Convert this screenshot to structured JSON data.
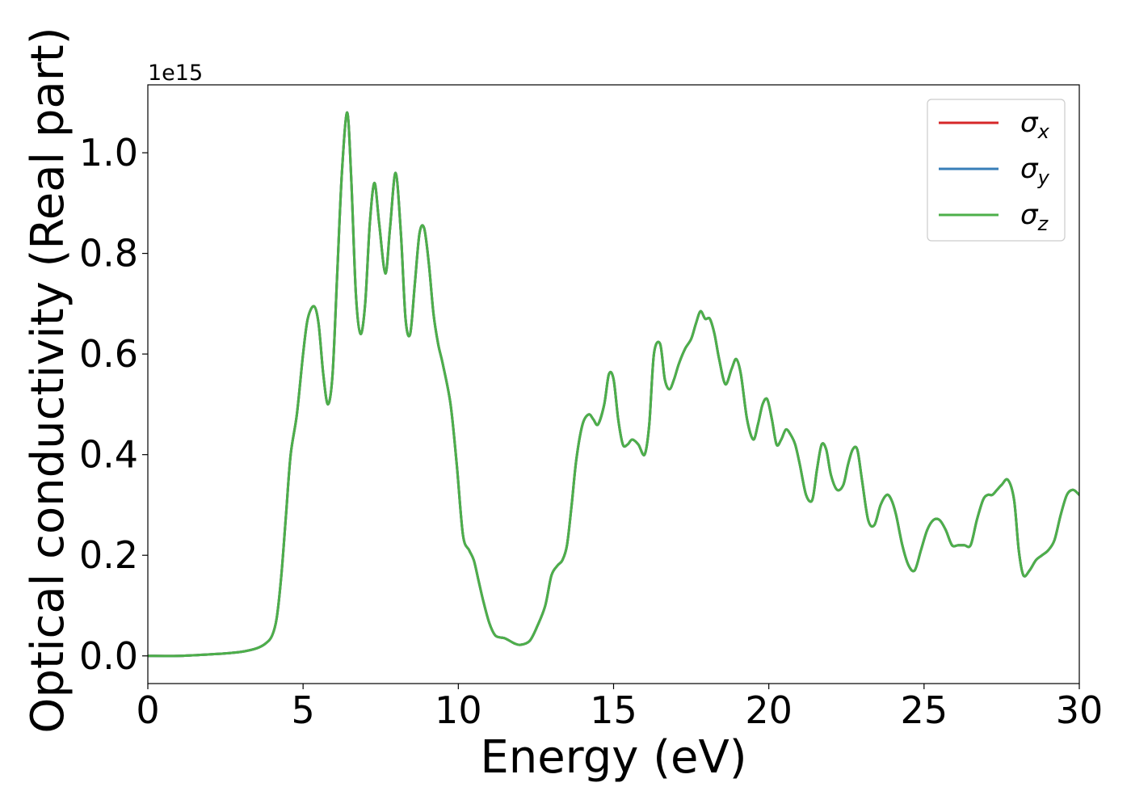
{
  "chart_data": {
    "type": "line",
    "xlabel": "Energy (eV)",
    "ylabel": "Optical conductivity (Real part)",
    "y_offset_label": "1e15",
    "xlim": [
      0,
      30
    ],
    "ylim": [
      -0.055,
      1.135
    ],
    "x_ticks": [
      0,
      5,
      10,
      15,
      20,
      25,
      30
    ],
    "x_tick_labels": [
      "0",
      "5",
      "10",
      "15",
      "20",
      "25",
      "30"
    ],
    "y_ticks": [
      0.0,
      0.2,
      0.4,
      0.6,
      0.8,
      1.0
    ],
    "y_tick_labels": [
      "0.0",
      "0.2",
      "0.4",
      "0.6",
      "0.8",
      "1.0"
    ],
    "grid": false,
    "legend_position": "top-right",
    "x": [
      0,
      1,
      2,
      2.5,
      3,
      3.5,
      3.8,
      4.0,
      4.15,
      4.3,
      4.45,
      4.6,
      4.8,
      5.0,
      5.15,
      5.35,
      5.5,
      5.65,
      5.8,
      5.95,
      6.1,
      6.25,
      6.42,
      6.55,
      6.7,
      6.85,
      7.0,
      7.15,
      7.3,
      7.45,
      7.65,
      7.8,
      7.98,
      8.15,
      8.3,
      8.45,
      8.6,
      8.75,
      8.9,
      9.05,
      9.2,
      9.35,
      9.5,
      9.75,
      9.95,
      10.15,
      10.35,
      10.5,
      10.65,
      10.8,
      11.0,
      11.2,
      11.5,
      11.8,
      12.0,
      12.3,
      12.55,
      12.8,
      13.0,
      13.2,
      13.35,
      13.5,
      13.65,
      13.8,
      14.0,
      14.2,
      14.35,
      14.5,
      14.7,
      14.85,
      15.0,
      15.15,
      15.3,
      15.45,
      15.6,
      15.8,
      16.0,
      16.15,
      16.3,
      16.5,
      16.65,
      16.8,
      16.95,
      17.1,
      17.3,
      17.5,
      17.65,
      17.8,
      17.95,
      18.1,
      18.25,
      18.4,
      18.6,
      18.8,
      18.95,
      19.1,
      19.3,
      19.5,
      19.65,
      19.8,
      19.95,
      20.1,
      20.25,
      20.4,
      20.55,
      20.7,
      20.85,
      21.0,
      21.2,
      21.4,
      21.55,
      21.7,
      21.85,
      22.0,
      22.2,
      22.4,
      22.55,
      22.7,
      22.85,
      23.0,
      23.2,
      23.4,
      23.6,
      23.8,
      23.95,
      24.1,
      24.3,
      24.5,
      24.7,
      24.9,
      25.1,
      25.3,
      25.5,
      25.7,
      25.9,
      26.1,
      26.3,
      26.5,
      26.7,
      26.9,
      27.05,
      27.2,
      27.35,
      27.5,
      27.7,
      27.9,
      28.05,
      28.2,
      28.4,
      28.6,
      28.8,
      29.0,
      29.2,
      29.4,
      29.6,
      29.8,
      30
    ],
    "series": [
      {
        "name": "σx",
        "label_base": "σ",
        "label_sub": "x",
        "color": "#d62728",
        "y": [
          0.0,
          0.0,
          0.003,
          0.005,
          0.008,
          0.015,
          0.025,
          0.04,
          0.075,
          0.16,
          0.28,
          0.4,
          0.48,
          0.6,
          0.67,
          0.695,
          0.66,
          0.56,
          0.5,
          0.56,
          0.76,
          0.96,
          1.08,
          0.95,
          0.72,
          0.64,
          0.7,
          0.86,
          0.94,
          0.86,
          0.76,
          0.85,
          0.96,
          0.84,
          0.67,
          0.64,
          0.74,
          0.84,
          0.85,
          0.78,
          0.68,
          0.62,
          0.58,
          0.5,
          0.38,
          0.24,
          0.21,
          0.19,
          0.15,
          0.11,
          0.065,
          0.04,
          0.035,
          0.025,
          0.022,
          0.03,
          0.06,
          0.1,
          0.16,
          0.18,
          0.19,
          0.22,
          0.3,
          0.39,
          0.46,
          0.48,
          0.47,
          0.46,
          0.5,
          0.56,
          0.55,
          0.47,
          0.42,
          0.42,
          0.43,
          0.42,
          0.4,
          0.46,
          0.6,
          0.62,
          0.55,
          0.53,
          0.55,
          0.58,
          0.61,
          0.63,
          0.66,
          0.685,
          0.67,
          0.67,
          0.64,
          0.59,
          0.54,
          0.57,
          0.59,
          0.56,
          0.47,
          0.43,
          0.46,
          0.5,
          0.51,
          0.47,
          0.42,
          0.43,
          0.45,
          0.44,
          0.42,
          0.38,
          0.32,
          0.31,
          0.37,
          0.42,
          0.41,
          0.36,
          0.33,
          0.34,
          0.38,
          0.41,
          0.41,
          0.35,
          0.27,
          0.26,
          0.3,
          0.32,
          0.31,
          0.28,
          0.22,
          0.18,
          0.17,
          0.21,
          0.25,
          0.27,
          0.27,
          0.25,
          0.22,
          0.22,
          0.22,
          0.22,
          0.27,
          0.31,
          0.32,
          0.32,
          0.33,
          0.34,
          0.35,
          0.31,
          0.21,
          0.16,
          0.17,
          0.19,
          0.2,
          0.21,
          0.23,
          0.28,
          0.32,
          0.33,
          0.32
        ]
      },
      {
        "name": "σy",
        "label_base": "σ",
        "label_sub": "y",
        "color": "#377eb8",
        "y": [
          0.0,
          0.0,
          0.003,
          0.005,
          0.008,
          0.015,
          0.025,
          0.04,
          0.075,
          0.16,
          0.28,
          0.4,
          0.48,
          0.6,
          0.67,
          0.695,
          0.66,
          0.56,
          0.5,
          0.56,
          0.76,
          0.96,
          1.08,
          0.95,
          0.72,
          0.64,
          0.7,
          0.86,
          0.94,
          0.86,
          0.76,
          0.85,
          0.96,
          0.84,
          0.67,
          0.64,
          0.74,
          0.84,
          0.85,
          0.78,
          0.68,
          0.62,
          0.58,
          0.5,
          0.38,
          0.24,
          0.21,
          0.19,
          0.15,
          0.11,
          0.065,
          0.04,
          0.035,
          0.025,
          0.022,
          0.03,
          0.06,
          0.1,
          0.16,
          0.18,
          0.19,
          0.22,
          0.3,
          0.39,
          0.46,
          0.48,
          0.47,
          0.46,
          0.5,
          0.56,
          0.55,
          0.47,
          0.42,
          0.42,
          0.43,
          0.42,
          0.4,
          0.46,
          0.6,
          0.62,
          0.55,
          0.53,
          0.55,
          0.58,
          0.61,
          0.63,
          0.66,
          0.685,
          0.67,
          0.67,
          0.64,
          0.59,
          0.54,
          0.57,
          0.59,
          0.56,
          0.47,
          0.43,
          0.46,
          0.5,
          0.51,
          0.47,
          0.42,
          0.43,
          0.45,
          0.44,
          0.42,
          0.38,
          0.32,
          0.31,
          0.37,
          0.42,
          0.41,
          0.36,
          0.33,
          0.34,
          0.38,
          0.41,
          0.41,
          0.35,
          0.27,
          0.26,
          0.3,
          0.32,
          0.31,
          0.28,
          0.22,
          0.18,
          0.17,
          0.21,
          0.25,
          0.27,
          0.27,
          0.25,
          0.22,
          0.22,
          0.22,
          0.22,
          0.27,
          0.31,
          0.32,
          0.32,
          0.33,
          0.34,
          0.35,
          0.31,
          0.21,
          0.16,
          0.17,
          0.19,
          0.2,
          0.21,
          0.23,
          0.28,
          0.32,
          0.33,
          0.32
        ]
      },
      {
        "name": "σz",
        "label_base": "σ",
        "label_sub": "z",
        "color": "#4daf4a",
        "y": [
          0.0,
          0.0,
          0.003,
          0.005,
          0.008,
          0.015,
          0.025,
          0.04,
          0.075,
          0.16,
          0.28,
          0.4,
          0.48,
          0.6,
          0.67,
          0.695,
          0.66,
          0.56,
          0.5,
          0.56,
          0.76,
          0.96,
          1.08,
          0.95,
          0.72,
          0.64,
          0.7,
          0.86,
          0.94,
          0.86,
          0.76,
          0.85,
          0.96,
          0.84,
          0.67,
          0.64,
          0.74,
          0.84,
          0.85,
          0.78,
          0.68,
          0.62,
          0.58,
          0.5,
          0.38,
          0.24,
          0.21,
          0.19,
          0.15,
          0.11,
          0.065,
          0.04,
          0.035,
          0.025,
          0.022,
          0.03,
          0.06,
          0.1,
          0.16,
          0.18,
          0.19,
          0.22,
          0.3,
          0.39,
          0.46,
          0.48,
          0.47,
          0.46,
          0.5,
          0.56,
          0.55,
          0.47,
          0.42,
          0.42,
          0.43,
          0.42,
          0.4,
          0.46,
          0.6,
          0.62,
          0.55,
          0.53,
          0.55,
          0.58,
          0.61,
          0.63,
          0.66,
          0.685,
          0.67,
          0.67,
          0.64,
          0.59,
          0.54,
          0.57,
          0.59,
          0.56,
          0.47,
          0.43,
          0.46,
          0.5,
          0.51,
          0.47,
          0.42,
          0.43,
          0.45,
          0.44,
          0.42,
          0.38,
          0.32,
          0.31,
          0.37,
          0.42,
          0.41,
          0.36,
          0.33,
          0.34,
          0.38,
          0.41,
          0.41,
          0.35,
          0.27,
          0.26,
          0.3,
          0.32,
          0.31,
          0.28,
          0.22,
          0.18,
          0.17,
          0.21,
          0.25,
          0.27,
          0.27,
          0.25,
          0.22,
          0.22,
          0.22,
          0.22,
          0.27,
          0.31,
          0.32,
          0.32,
          0.33,
          0.34,
          0.35,
          0.31,
          0.21,
          0.16,
          0.17,
          0.19,
          0.2,
          0.21,
          0.23,
          0.28,
          0.32,
          0.33,
          0.32
        ]
      }
    ]
  }
}
